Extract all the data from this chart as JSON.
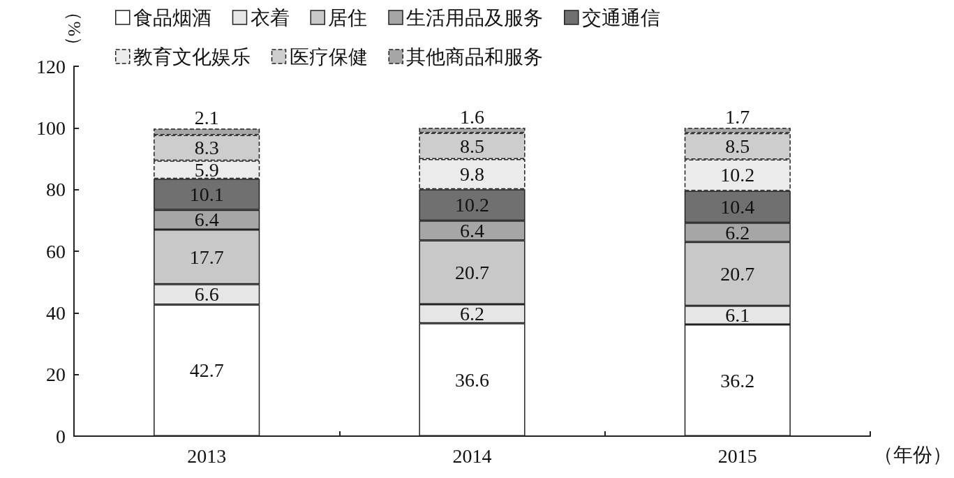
{
  "chart_data": {
    "type": "bar",
    "categories": [
      "2013",
      "2014",
      "2015"
    ],
    "ylabel": "（%）",
    "xlabel": "（年份）",
    "ylim": [
      0,
      120
    ],
    "yticks": [
      0,
      20,
      40,
      60,
      80,
      100,
      120
    ],
    "stacked": true,
    "data_labels": true,
    "grid": false,
    "legend": "top",
    "series": [
      {
        "name": "食品烟酒",
        "color": "#ffffff",
        "values": [
          42.7,
          36.6,
          36.2
        ]
      },
      {
        "name": "衣着",
        "color": "#e6e6e6",
        "values": [
          6.6,
          6.2,
          6.1
        ]
      },
      {
        "name": "居住",
        "color": "#c8c8c8",
        "values": [
          17.7,
          20.7,
          20.7
        ]
      },
      {
        "name": "生活用品及服务",
        "color": "#a6a6a6",
        "values": [
          6.4,
          6.4,
          6.2
        ]
      },
      {
        "name": "交通通信",
        "color": "#707070",
        "values": [
          10.1,
          10.2,
          10.4
        ]
      },
      {
        "name": "教育文化娱乐",
        "color": "#ebebeb",
        "line_style": "dashed",
        "values": [
          5.9,
          9.8,
          10.2
        ]
      },
      {
        "name": "医疗保健",
        "color": "#cdcdcd",
        "line_style": "dashed",
        "values": [
          8.3,
          8.5,
          8.5
        ]
      },
      {
        "name": "其他商品和服务",
        "color": "#a6a6a6",
        "line_style": "dashed",
        "values": [
          2.1,
          1.6,
          1.7
        ]
      }
    ]
  }
}
